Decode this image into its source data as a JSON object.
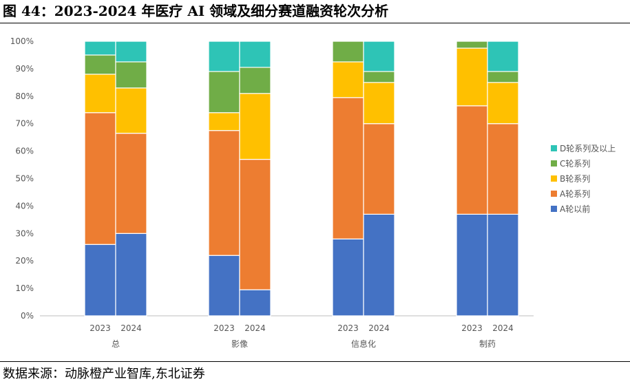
{
  "figure": {
    "title": "图 44：2023-2024 年医疗 AI 领域及细分赛道融资轮次分析",
    "source": "数据来源：动脉橙产业智库,东北证券"
  },
  "chart_data": {
    "type": "bar",
    "stacked": true,
    "y_format": "percent",
    "ylim": [
      0,
      100
    ],
    "yticks": [
      0,
      10,
      20,
      30,
      40,
      50,
      60,
      70,
      80,
      90,
      100
    ],
    "grid": false,
    "legend_position": "right",
    "groups": [
      {
        "name": "总",
        "bars": [
          "2023",
          "2024"
        ]
      },
      {
        "name": "影像",
        "bars": [
          "2023",
          "2024"
        ]
      },
      {
        "name": "信息化",
        "bars": [
          "2023",
          "2024"
        ]
      },
      {
        "name": "制药",
        "bars": [
          "2023",
          "2024"
        ]
      }
    ],
    "series": [
      {
        "name": "A轮以前",
        "color": "#4472C4",
        "values": [
          26,
          30,
          22,
          9.5,
          28,
          37,
          37,
          37
        ]
      },
      {
        "name": "A轮系列",
        "color": "#ED7D31",
        "values": [
          48,
          36.5,
          45.5,
          47.5,
          51.5,
          33,
          39.5,
          33
        ]
      },
      {
        "name": "B轮系列",
        "color": "#FFC000",
        "values": [
          14,
          16.5,
          6.5,
          24,
          13,
          15,
          21,
          15
        ]
      },
      {
        "name": "C轮系列",
        "color": "#70AD47",
        "values": [
          7,
          9.5,
          15,
          9.5,
          7.5,
          4,
          2.5,
          4
        ]
      },
      {
        "name": "D轮系列及以上",
        "color": "#2EC4B6",
        "values": [
          5,
          7.5,
          11,
          9.5,
          0,
          11,
          0,
          11
        ]
      }
    ]
  }
}
